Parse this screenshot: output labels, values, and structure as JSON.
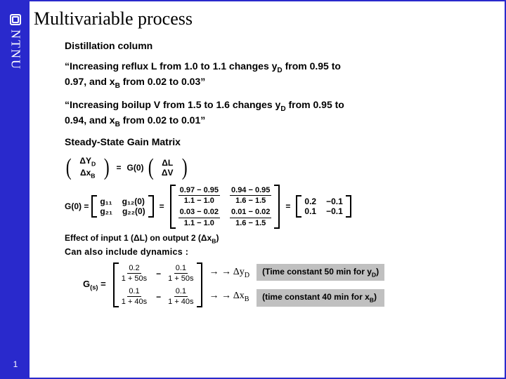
{
  "sidebar": {
    "brand": "NTNU",
    "page_number": "1"
  },
  "title": "Multivariable process",
  "intro": {
    "heading": "Distillation column",
    "line1a": "“Increasing reflux L from 1.0 to 1.1 changes y",
    "line1_sub": "D",
    "line1b": " from 0.95 to 0.97, and x",
    "line1_sub2": "B",
    "line1c": " from 0.02 to 0.03”",
    "line2a": "“Increasing boilup V from 1.5 to 1.6 changes y",
    "line2_sub": "D",
    "line2b": " from 0.95 to 0.94, and x",
    "line2_sub2": "B",
    "line2c": " from 0.02 to 0.01”"
  },
  "ssgm_label": "Steady-State Gain Matrix",
  "eq1": {
    "lhs_top": "ΔY",
    "lhs_top_sub": "D",
    "lhs_bot": "Δx",
    "lhs_bot_sub": "B",
    "mid": "G(0)",
    "rhs_top": "ΔL",
    "rhs_bot": "ΔV"
  },
  "g0": {
    "lhs": "G(0) =",
    "sym": {
      "g11": "g₁₁",
      "g12": "g₁₂(0)",
      "g21": "g₂₁",
      "g22": "g₂₂(0)"
    },
    "num": {
      "a_num": "0.97 − 0.95",
      "a_den": "1.1 − 1.0",
      "b_num": "0.94 − 0.95",
      "b_den": "1.6 − 1.5",
      "c_num": "0.03 − 0.02",
      "c_den": "1.1 − 1.0",
      "d_num": "0.01 − 0.02",
      "d_den": "1.6 − 1.5"
    },
    "res": {
      "a": "0.2",
      "b": "−0.1",
      "c": "0.1",
      "d": "−0.1"
    }
  },
  "effect_note_a": "Effect of input 1 (ΔL) on output 2 (Δx",
  "effect_note_sub": "B",
  "effect_note_b": ")",
  "dyn_label": "Can also include dynamics  :",
  "gs": {
    "lhs": "G",
    "lhs_sub": "(s)",
    "a_num": "0.2",
    "a_den": "1 + 50s",
    "b_num": "0.1",
    "b_den": "1 + 50s",
    "c_num": "0.1",
    "c_den": "1 + 40s",
    "d_num": "0.1",
    "d_den": "1 + 40s",
    "neg": "−"
  },
  "arrows": {
    "yD_a": "Δy",
    "yD_sub": "D",
    "xB_a": "Δx",
    "xB_sub": "B"
  },
  "tc": {
    "t1a": "(Time constant 50 min for y",
    "t1_sub": "D",
    "t1b": ")",
    "t2a": "(time constant 40 min for x",
    "t2_sub": "B",
    "t2b": ")"
  },
  "style": {
    "accent": "#2929cc",
    "grey": "#c0c0c0",
    "text": "#000000",
    "title_fontsize": 26,
    "body_fontsize": 14,
    "eq_fontsize": 12
  }
}
